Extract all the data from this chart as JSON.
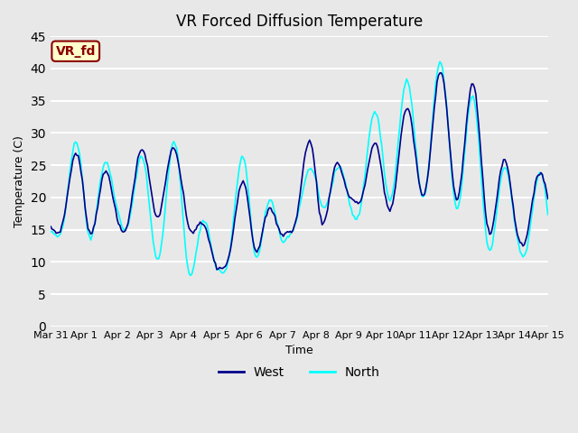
{
  "title": "VR Forced Diffusion Temperature",
  "xlabel": "Time",
  "ylabel": "Temperature (C)",
  "ylim": [
    0,
    45
  ],
  "yticks": [
    0,
    5,
    10,
    15,
    20,
    25,
    30,
    35,
    40,
    45
  ],
  "background_color": "#e8e8e8",
  "plot_bg_color": "#e8e8e8",
  "grid_color": "white",
  "west_color": "#00008B",
  "north_color": "#00FFFF",
  "label_text": "VR_fd",
  "label_bg": "#ffffcc",
  "label_border": "#8B0000",
  "x_tick_labels": [
    "Mar 31",
    "Apr 1",
    "Apr 2",
    "Apr 3",
    "Apr 4",
    "Apr 5",
    "Apr 6",
    "Apr 7",
    "Apr 8",
    "Apr 9",
    "Apr 10",
    "Apr 11",
    "Apr 12",
    "Apr 13",
    "Apr 14",
    "Apr 15"
  ],
  "n_points": 336,
  "days": 15
}
